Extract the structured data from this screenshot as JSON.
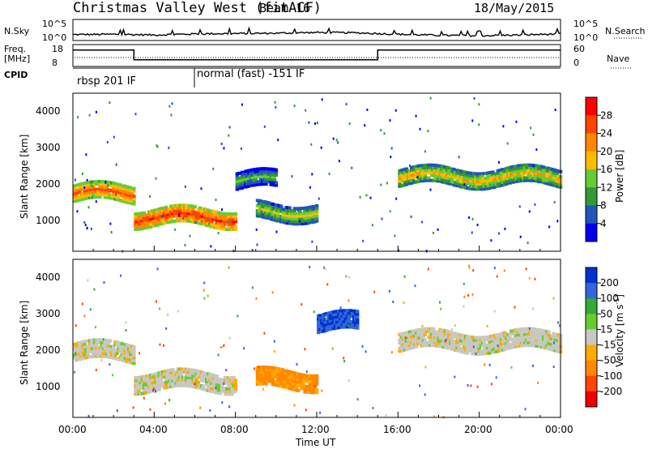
{
  "header": {
    "title": "Christmas Valley West (fitACF)",
    "beam": "Beam 16",
    "date": "18/May/2015"
  },
  "nsky_panel": {
    "left_label": "N.Sky",
    "right_label": "N.Search",
    "left_ticks": [
      "10^5",
      "10^0"
    ],
    "right_ticks": [
      "10^5",
      "10^0"
    ]
  },
  "freq_panel": {
    "left_label_1": "Freq.",
    "left_label_2": "[MHz]",
    "right_label": "Nave",
    "left_ticks": [
      "18",
      "8"
    ],
    "right_ticks": [
      "60",
      "0"
    ]
  },
  "cpid_panel": {
    "label": "CPID",
    "segments": [
      "rbsp 201 IF",
      "normal (fast) -151 IF"
    ]
  },
  "time_axis": {
    "label": "Time UT",
    "ticks": [
      "00:00",
      "04:00",
      "08:00",
      "12:00",
      "16:00",
      "20:00",
      "00:00"
    ]
  },
  "range_axis": {
    "label": "Slant Range [km]",
    "ticks": [
      "1000",
      "2000",
      "3000",
      "4000"
    ]
  },
  "power_colorbar": {
    "title": "Power [dB]",
    "ticks": [
      "28",
      "24",
      "20",
      "16",
      "12",
      "8",
      "4"
    ],
    "colors": [
      "#ff0000",
      "#ff4400",
      "#ff8800",
      "#ffbb00",
      "#66cc33",
      "#339933",
      "#2255bb",
      "#0000ee"
    ]
  },
  "velocity_colorbar": {
    "title": "Velocity [m s",
    "title_sup": "-1",
    "title_end": "]",
    "ticks": [
      "200",
      "100",
      "50",
      "15",
      "-15",
      "-50",
      "-100",
      "-200"
    ],
    "colors": [
      "#0033cc",
      "#3366dd",
      "#33aa33",
      "#66cc33",
      "#c8c8c0",
      "#ffaa00",
      "#ff8800",
      "#ff4400",
      "#ee0000"
    ]
  },
  "chart_data": [
    {
      "type": "line",
      "title": "N.Sky / N.Search",
      "x_range": [
        "00:00",
        "24:00"
      ],
      "series": [
        {
          "name": "N.Sky",
          "x": [
            "00:00",
            "02:00",
            "04:00",
            "06:00",
            "08:00",
            "10:00",
            "12:00",
            "14:00",
            "16:00",
            "18:00",
            "20:00",
            "22:00",
            "24:00"
          ],
          "values_log10": [
            1.2,
            1.3,
            1.1,
            1.4,
            1.5,
            1.6,
            1.8,
            1.7,
            1.3,
            1.0,
            0.9,
            1.1,
            1.4
          ]
        }
      ]
    },
    {
      "type": "line",
      "title": "Freq. [MHz]",
      "ylim": [
        8,
        18
      ],
      "x": [
        "00:00",
        "03:00",
        "03:00",
        "15:00",
        "15:00",
        "24:00"
      ],
      "values": [
        16,
        16,
        11,
        11,
        16,
        16
      ]
    },
    {
      "type": "heatmap",
      "title": "Power [dB]",
      "xlabel": "Time UT",
      "ylabel": "Slant Range [km]",
      "xlim": [
        "00:00",
        "24:00"
      ],
      "ylim": [
        180,
        4500
      ],
      "colorbar_range": [
        3,
        30
      ],
      "echo_bands": [
        {
          "start": "00:00",
          "end": "03:00",
          "range_center_km": 1800,
          "power_db": 26
        },
        {
          "start": "03:00",
          "end": "08:00",
          "range_center_km": 1150,
          "power_db": 28
        },
        {
          "start": "08:00",
          "end": "10:00",
          "range_center_km": 2150,
          "power_db": 14
        },
        {
          "start": "09:00",
          "end": "12:00",
          "range_center_km": 1300,
          "power_db": 18
        },
        {
          "start": "16:00",
          "end": "24:00",
          "range_center_km": 2250,
          "power_db": 20
        }
      ]
    },
    {
      "type": "heatmap",
      "title": "Velocity [m s-1]",
      "xlabel": "Time UT",
      "ylabel": "Slant Range [km]",
      "xlim": [
        "00:00",
        "24:00"
      ],
      "ylim": [
        180,
        4500
      ],
      "colorbar_range": [
        -200,
        200
      ],
      "echo_bands": [
        {
          "start": "00:00",
          "end": "03:00",
          "range_center_km": 2000,
          "velocity": 0
        },
        {
          "start": "03:00",
          "end": "08:00",
          "range_center_km": 1200,
          "velocity": 0
        },
        {
          "start": "09:00",
          "end": "12:00",
          "range_center_km": 1250,
          "velocity": -50
        },
        {
          "start": "12:00",
          "end": "14:00",
          "range_center_km": 2800,
          "velocity": 150
        },
        {
          "start": "16:00",
          "end": "24:00",
          "range_center_km": 2300,
          "velocity": 0
        }
      ]
    }
  ]
}
